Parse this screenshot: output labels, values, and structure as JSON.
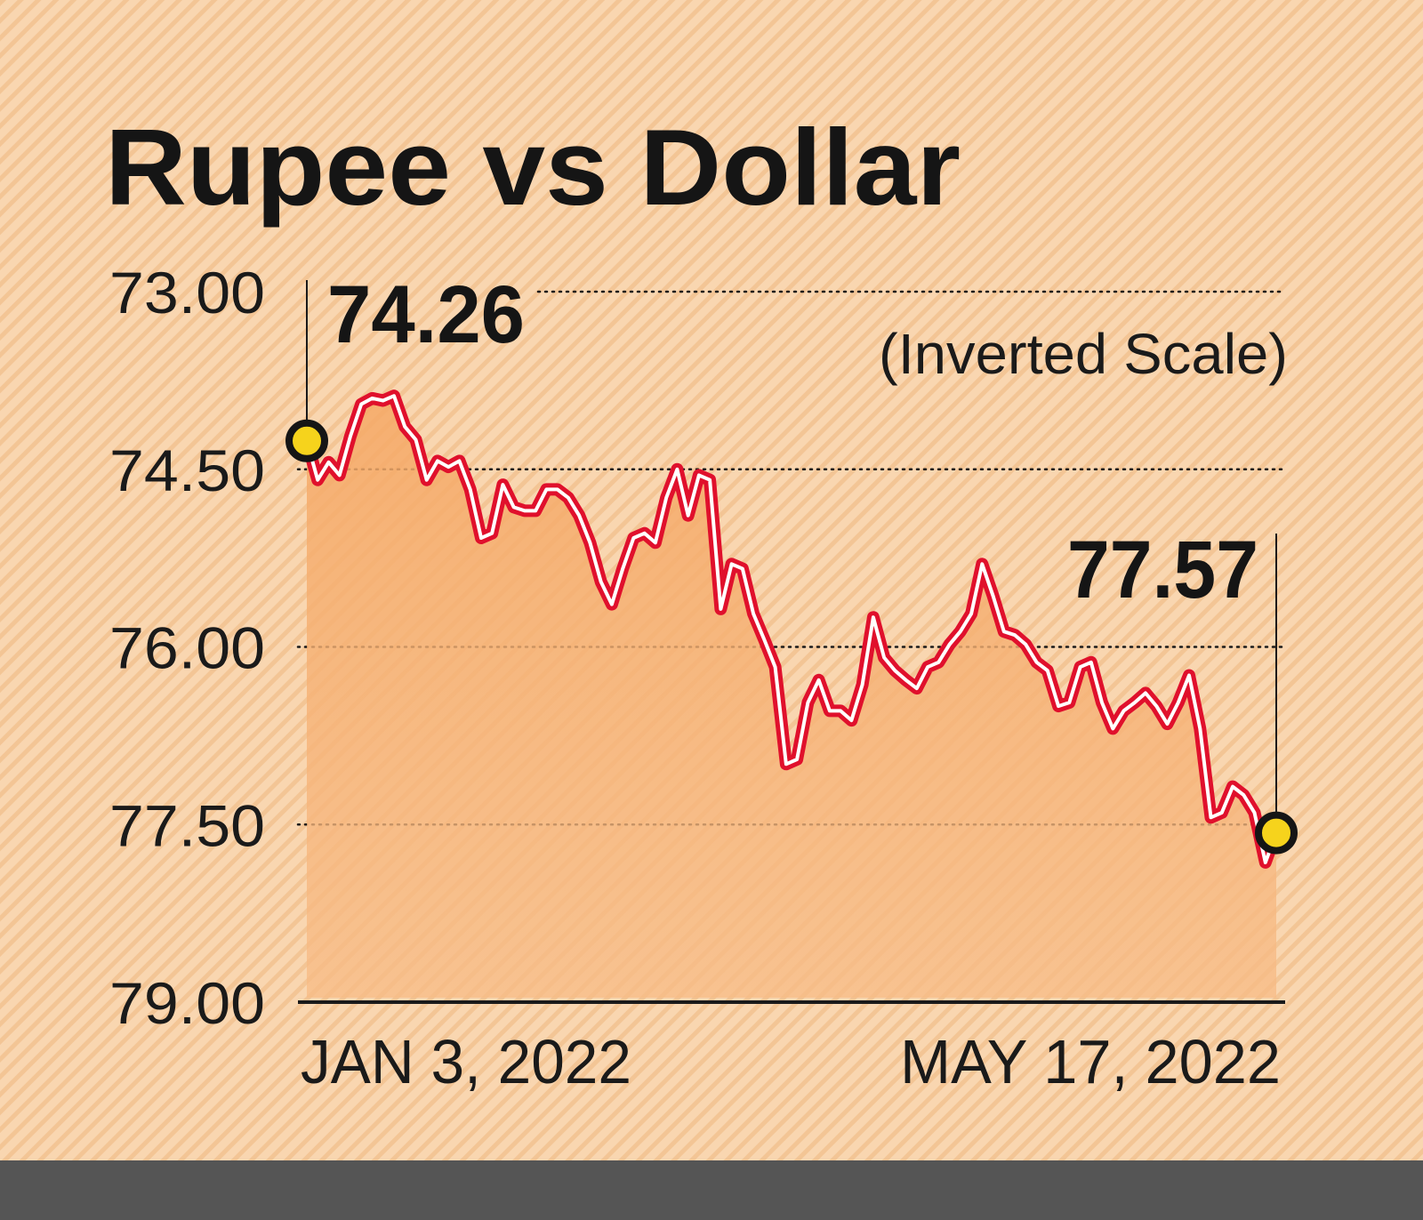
{
  "chart_data": {
    "type": "area",
    "title": "Rupee vs Dollar",
    "note": "(Inverted Scale)",
    "inverted_y": true,
    "ylim": [
      73.0,
      79.0
    ],
    "yticks": [
      "73.00",
      "74.50",
      "76.00",
      "77.50",
      "79.00"
    ],
    "ytick_values": [
      73.0,
      74.5,
      76.0,
      77.5,
      79.0
    ],
    "xtick_labels": [
      "JAN 3, 2022",
      "MAY 17, 2022"
    ],
    "grid": "horizontal dotted",
    "start_label": "74.26",
    "end_label": "77.57",
    "values": [
      74.26,
      74.59,
      74.44,
      74.55,
      74.22,
      73.95,
      73.9,
      73.92,
      73.88,
      74.14,
      74.25,
      74.59,
      74.43,
      74.48,
      74.43,
      74.67,
      75.08,
      75.04,
      74.63,
      74.82,
      74.85,
      74.85,
      74.67,
      74.67,
      74.74,
      74.89,
      75.12,
      75.45,
      75.64,
      75.34,
      75.08,
      75.04,
      75.12,
      74.74,
      74.5,
      74.89,
      74.55,
      74.59,
      75.68,
      75.3,
      75.34,
      75.72,
      75.94,
      76.17,
      76.99,
      76.95,
      76.47,
      76.28,
      76.54,
      76.54,
      76.62,
      76.32,
      75.75,
      76.09,
      76.2,
      76.28,
      76.35,
      76.17,
      76.13,
      75.98,
      75.87,
      75.72,
      75.3,
      75.57,
      75.87,
      75.9,
      75.98,
      76.13,
      76.2,
      76.5,
      76.47,
      76.17,
      76.13,
      76.47,
      76.69,
      76.54,
      76.47,
      76.39,
      76.5,
      76.65,
      76.47,
      76.24,
      76.69,
      77.44,
      77.4,
      77.18,
      77.25,
      77.4,
      77.82,
      77.57
    ],
    "colors": {
      "background": "#f9d6b0",
      "stripe": "#f3c89c",
      "fill": "#f6b478",
      "line": "#e0102c",
      "line_inner": "#ffffff",
      "marker": "#f6d31c",
      "footer": "#555555"
    }
  }
}
